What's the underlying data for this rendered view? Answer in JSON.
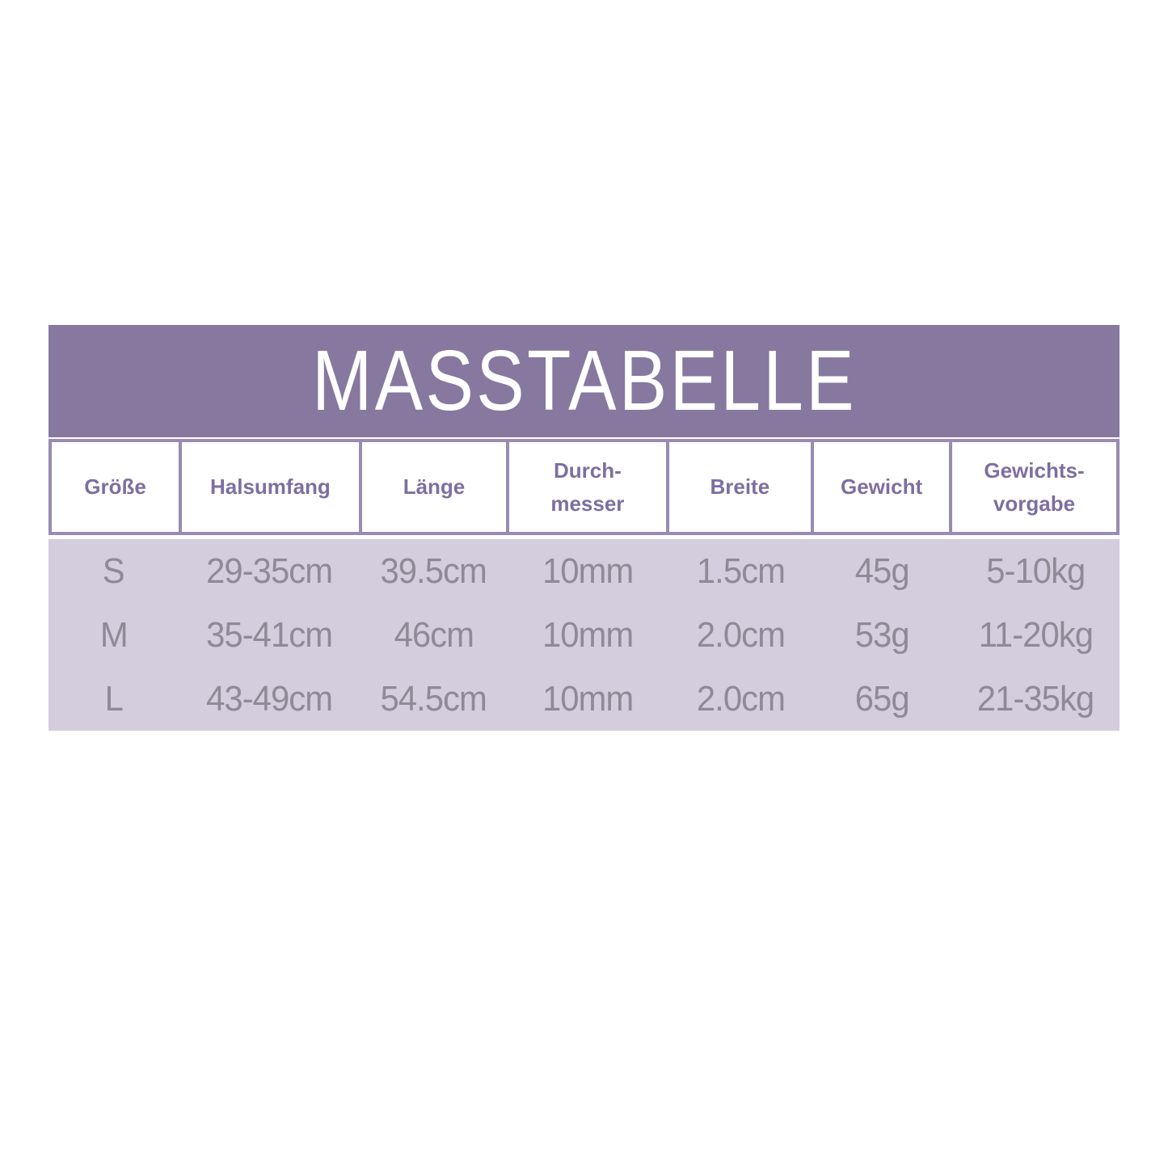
{
  "title": "MASSTABELLE",
  "colors": {
    "page_bg": "#ffffff",
    "title_bar_bg": "#87789f",
    "title_text": "#ffffff",
    "table_border": "#998bb3",
    "header_text": "#7d6fa0",
    "body_bg": "#d3cdde",
    "body_text": "#8e8a96"
  },
  "table": {
    "columns": [
      "Größe",
      "Halsumfang",
      "Länge",
      "Durch-\nmesser",
      "Breite",
      "Gewicht",
      "Gewichts-\nvorgabe"
    ],
    "rows": [
      [
        "S",
        "29-35cm",
        "39.5cm",
        "10mm",
        "1.5cm",
        "45g",
        "5-10kg"
      ],
      [
        "M",
        "35-41cm",
        "46cm",
        "10mm",
        "2.0cm",
        "53g",
        "11-20kg"
      ],
      [
        "L",
        "43-49cm",
        "54.5cm",
        "10mm",
        "2.0cm",
        "65g",
        "21-35kg"
      ]
    ]
  },
  "chart_data": {
    "type": "table",
    "title": "MASSTABELLE",
    "columns": [
      "Größe",
      "Halsumfang",
      "Länge",
      "Durchmesser",
      "Breite",
      "Gewicht",
      "Gewichtsvorgabe"
    ],
    "rows": [
      {
        "Größe": "S",
        "Halsumfang": "29-35cm",
        "Länge": "39.5cm",
        "Durchmesser": "10mm",
        "Breite": "1.5cm",
        "Gewicht": "45g",
        "Gewichtsvorgabe": "5-10kg"
      },
      {
        "Größe": "M",
        "Halsumfang": "35-41cm",
        "Länge": "46cm",
        "Durchmesser": "10mm",
        "Breite": "2.0cm",
        "Gewicht": "53g",
        "Gewichtsvorgabe": "11-20kg"
      },
      {
        "Größe": "L",
        "Halsumfang": "43-49cm",
        "Länge": "54.5cm",
        "Durchmesser": "10mm",
        "Breite": "2.0cm",
        "Gewicht": "65g",
        "Gewichtsvorgabe": "21-35kg"
      }
    ]
  }
}
